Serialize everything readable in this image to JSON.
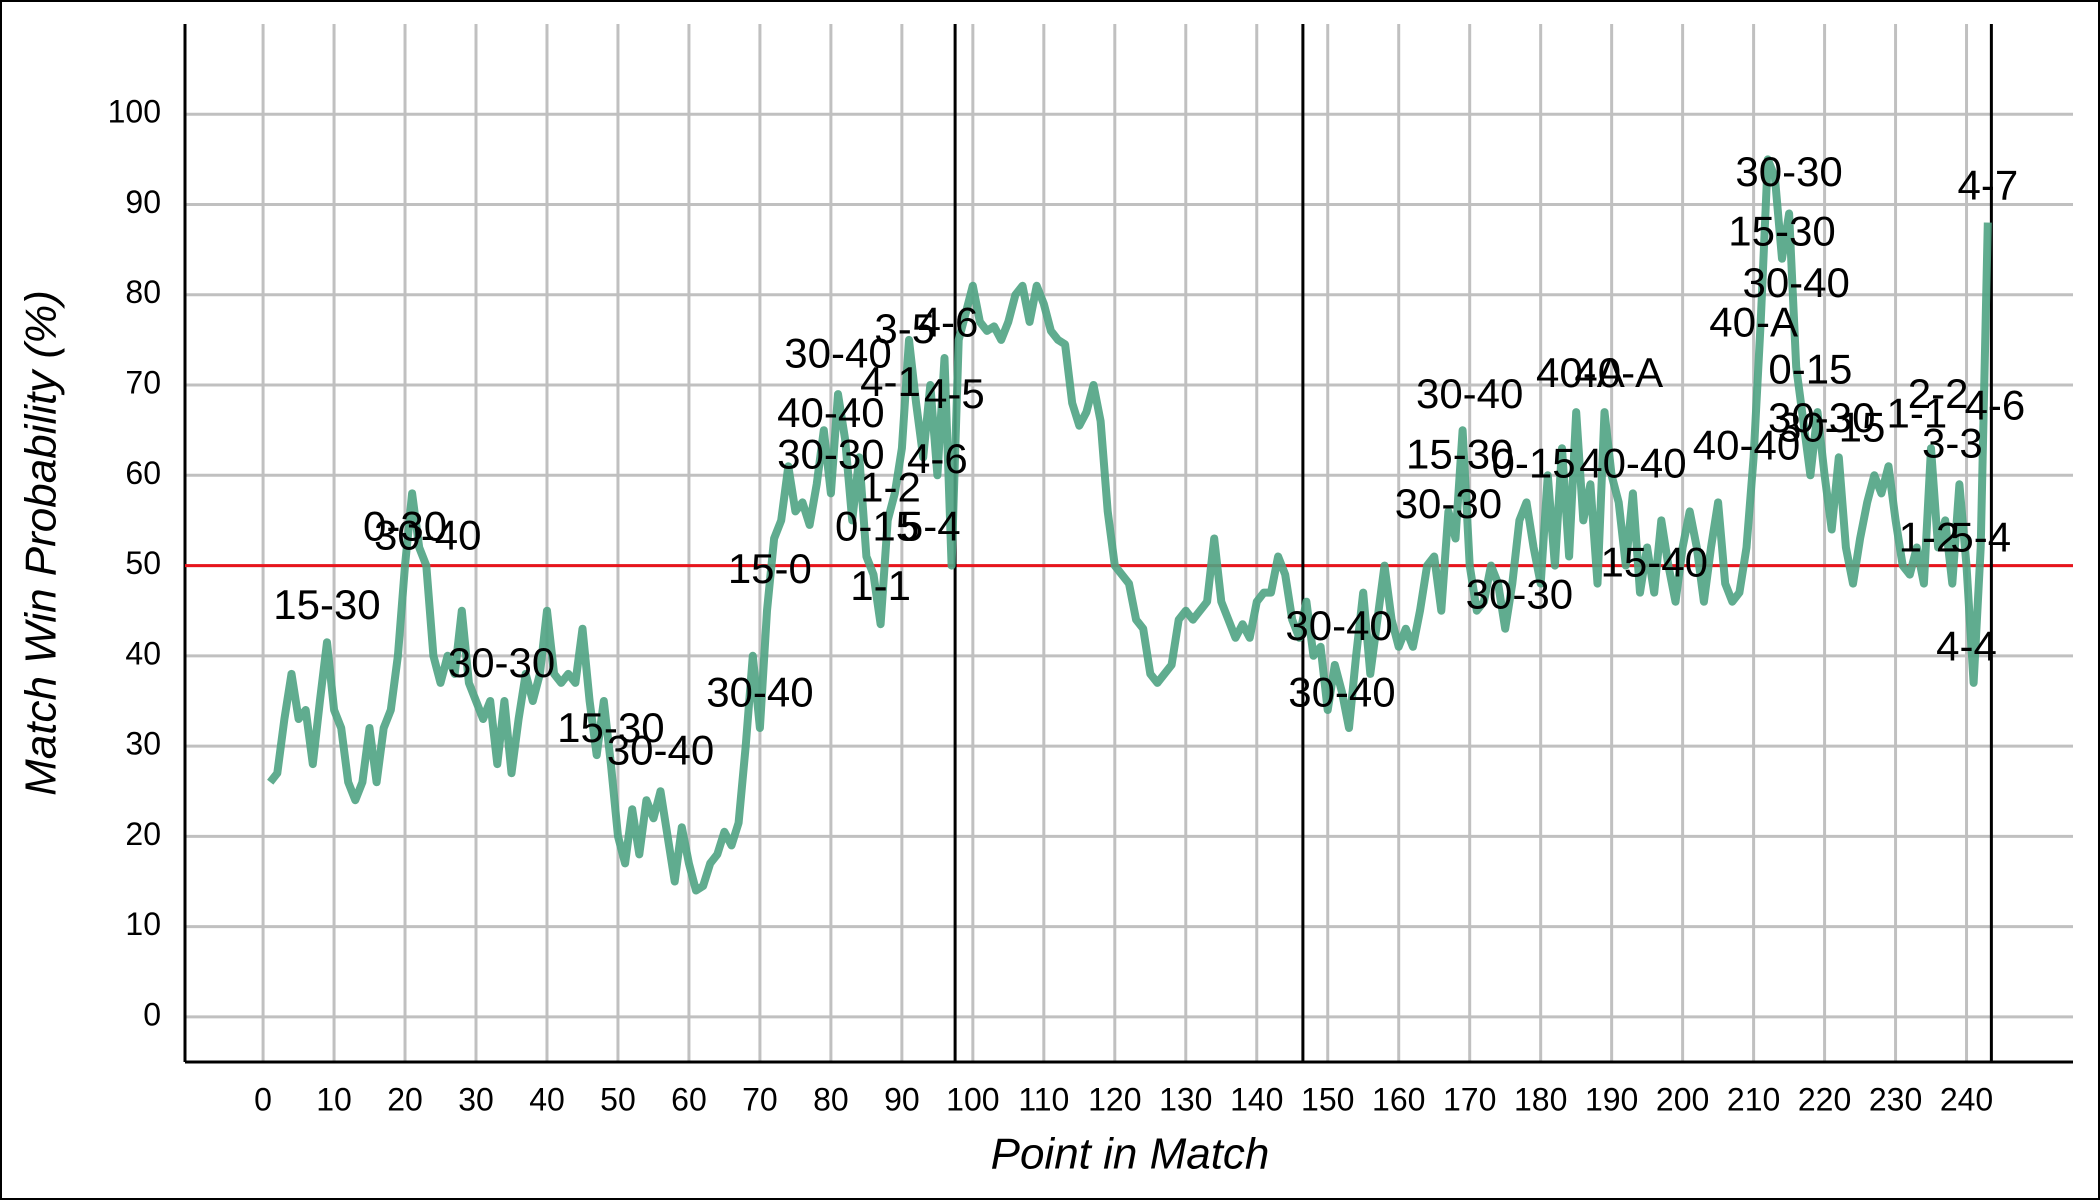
{
  "chart_data": {
    "type": "line",
    "x_label": "Point in Match",
    "y_label": "Match Win Probability (%)",
    "xlim": [
      -11,
      255
    ],
    "ylim": [
      -5,
      110
    ],
    "xticks": [
      0,
      10,
      20,
      30,
      40,
      50,
      60,
      70,
      80,
      90,
      100,
      110,
      120,
      130,
      140,
      150,
      160,
      170,
      180,
      190,
      200,
      210,
      220,
      230,
      240
    ],
    "yticks": [
      0,
      10,
      20,
      30,
      40,
      50,
      60,
      70,
      80,
      90,
      100
    ],
    "grid": true,
    "reference_line": {
      "y": 50,
      "color": "#e8141c"
    },
    "vlines": [
      97.5,
      146.5,
      243.5
    ],
    "series": [
      {
        "color": "#4fa383",
        "x": [
          1,
          2,
          3,
          4,
          5,
          6,
          7,
          8,
          9,
          10,
          11,
          12,
          13,
          14,
          15,
          16,
          17,
          18,
          19,
          20,
          21,
          22,
          23,
          24,
          25,
          26,
          27,
          28,
          29,
          30,
          31,
          32,
          33,
          34,
          35,
          36,
          37,
          38,
          39,
          40,
          41,
          42,
          43,
          44,
          45,
          46,
          47,
          48,
          49,
          50,
          51,
          52,
          53,
          54,
          55,
          56,
          57,
          58,
          59,
          60,
          61,
          62,
          63,
          64,
          65,
          66,
          67,
          68,
          69,
          70,
          71,
          72,
          73,
          74,
          75,
          76,
          77,
          78,
          79,
          80,
          81,
          82,
          83,
          84,
          85,
          86,
          87,
          88,
          89,
          90,
          91,
          92,
          93,
          94,
          95,
          96,
          97,
          98,
          99,
          100,
          101,
          102,
          103,
          104,
          105,
          106,
          107,
          108,
          109,
          110,
          111,
          112,
          113,
          114,
          115,
          116,
          117,
          118,
          119,
          120,
          121,
          122,
          123,
          124,
          125,
          126,
          127,
          128,
          129,
          130,
          131,
          132,
          133,
          134,
          135,
          136,
          137,
          138,
          139,
          140,
          141,
          142,
          143,
          144,
          145,
          146,
          147,
          148,
          149,
          150,
          151,
          152,
          153,
          154,
          155,
          156,
          157,
          158,
          159,
          160,
          161,
          162,
          163,
          164,
          165,
          166,
          167,
          168,
          169,
          170,
          171,
          172,
          173,
          174,
          175,
          176,
          177,
          178,
          179,
          180,
          181,
          182,
          183,
          184,
          185,
          186,
          187,
          188,
          189,
          190,
          191,
          192,
          193,
          194,
          195,
          196,
          197,
          198,
          199,
          200,
          201,
          202,
          203,
          204,
          205,
          206,
          207,
          208,
          209,
          210,
          211,
          212,
          213,
          214,
          215,
          216,
          217,
          218,
          219,
          220,
          221,
          222,
          223,
          224,
          225,
          226,
          227,
          228,
          229,
          230,
          231,
          232,
          233,
          234,
          235,
          236,
          237,
          238,
          239,
          240,
          241,
          242,
          243
        ],
        "values": [
          26,
          27,
          33,
          38,
          33,
          34,
          28,
          35,
          41.5,
          34,
          32,
          26,
          24,
          26,
          32,
          26,
          32,
          34,
          40,
          50,
          58,
          52,
          50,
          40,
          37,
          40,
          38,
          45,
          37,
          35,
          33,
          35,
          28,
          35,
          27,
          33,
          38,
          35,
          38,
          45,
          38,
          37,
          38,
          37,
          43,
          35,
          29,
          35,
          28,
          20,
          17,
          23,
          18,
          24,
          22,
          25,
          20,
          15,
          21,
          17,
          14,
          14.5,
          17,
          18,
          20.5,
          19,
          21.5,
          30,
          40,
          32,
          45,
          53,
          55,
          61,
          56,
          57,
          54.5,
          59,
          65,
          58,
          69,
          64,
          55,
          62,
          51,
          49,
          43.5,
          55,
          58,
          63,
          75,
          68,
          62,
          70,
          60,
          73,
          50,
          75,
          78,
          81,
          77,
          76,
          76.5,
          75,
          77,
          80,
          81,
          77,
          81,
          79,
          76,
          75,
          74.5,
          68,
          65.5,
          67,
          70,
          66,
          56,
          50,
          49,
          48,
          44,
          43,
          38,
          37,
          38,
          39,
          44,
          45,
          44,
          45,
          46,
          53,
          46,
          44,
          42,
          43.5,
          42,
          46,
          47,
          47,
          51,
          49,
          44,
          42,
          46,
          40,
          41,
          34,
          39,
          36,
          32,
          40,
          47,
          38,
          44,
          50,
          44,
          41,
          43,
          41,
          45,
          50,
          51,
          45,
          56,
          53,
          65,
          50,
          45,
          46,
          50,
          48,
          43,
          48,
          55,
          57,
          52,
          48,
          60,
          50,
          63,
          51,
          67,
          55,
          59,
          48,
          67,
          60,
          57,
          50,
          58,
          47,
          52,
          47,
          55,
          50,
          46,
          52,
          56,
          52,
          46,
          52,
          57,
          48,
          46,
          47,
          52,
          62,
          77,
          95,
          93,
          84,
          89,
          72,
          66,
          60,
          67,
          60,
          54,
          62,
          52,
          48,
          53,
          57,
          60,
          58,
          61,
          55,
          50,
          49,
          52,
          48,
          63,
          52,
          55,
          48,
          59,
          50,
          37,
          52,
          88
        ]
      }
    ],
    "annotations": [
      {
        "text": "15-30",
        "x": 9,
        "y": 45.3
      },
      {
        "text": "0-30",
        "x": 20,
        "y": 54
      },
      {
        "text": "30-40",
        "x": 23.2,
        "y": 53
      },
      {
        "text": "30-30",
        "x": 33.6,
        "y": 38.9
      },
      {
        "text": "15-30",
        "x": 49,
        "y": 31.7
      },
      {
        "text": "30-40",
        "x": 56,
        "y": 29.2
      },
      {
        "text": "30-40",
        "x": 70,
        "y": 35.6
      },
      {
        "text": "15-0",
        "x": 71.4,
        "y": 49.3
      },
      {
        "text": "30-40",
        "x": 81,
        "y": 73.2
      },
      {
        "text": "40-40",
        "x": 80,
        "y": 66.6
      },
      {
        "text": "30-30",
        "x": 80,
        "y": 62
      },
      {
        "text": "1-2",
        "x": 88.4,
        "y": 58.3
      },
      {
        "text": "0-15",
        "x": 86.5,
        "y": 54
      },
      {
        "text": "5-4",
        "x": 94,
        "y": 54
      },
      {
        "text": "1-1",
        "x": 87,
        "y": 47.4
      },
      {
        "text": "4-6",
        "x": 95,
        "y": 61.5
      },
      {
        "text": "3-5",
        "x": 90.4,
        "y": 75.9
      },
      {
        "text": "4-6",
        "x": 96.5,
        "y": 76.6
      },
      {
        "text": "4-1",
        "x": 88.4,
        "y": 70
      },
      {
        "text": "4-5",
        "x": 97.4,
        "y": 68.7
      },
      {
        "text": "30-40",
        "x": 151.6,
        "y": 43
      },
      {
        "text": "30-40",
        "x": 152,
        "y": 35.6
      },
      {
        "text": "30-40",
        "x": 170,
        "y": 68.7
      },
      {
        "text": "15-30",
        "x": 168.6,
        "y": 62
      },
      {
        "text": "30-30",
        "x": 167,
        "y": 56.5
      },
      {
        "text": "30-30",
        "x": 177,
        "y": 46.5
      },
      {
        "text": "0-15",
        "x": 179,
        "y": 61
      },
      {
        "text": "40-A",
        "x": 185.6,
        "y": 71
      },
      {
        "text": "40-A",
        "x": 191,
        "y": 71
      },
      {
        "text": "40-40",
        "x": 193,
        "y": 61
      },
      {
        "text": "15-40",
        "x": 196,
        "y": 50
      },
      {
        "text": "40-40",
        "x": 209,
        "y": 63
      },
      {
        "text": "30-30",
        "x": 215,
        "y": 93.3
      },
      {
        "text": "15-30",
        "x": 214,
        "y": 86.7
      },
      {
        "text": "30-40",
        "x": 216,
        "y": 81
      },
      {
        "text": "40-A",
        "x": 210,
        "y": 76.6
      },
      {
        "text": "0-15",
        "x": 218,
        "y": 71.4
      },
      {
        "text": "30-30",
        "x": 219.6,
        "y": 66
      },
      {
        "text": "30-15",
        "x": 221,
        "y": 65
      },
      {
        "text": "1-1",
        "x": 233,
        "y": 66.5
      },
      {
        "text": "2-2",
        "x": 236,
        "y": 68.7
      },
      {
        "text": "4-6",
        "x": 244,
        "y": 67.4
      },
      {
        "text": "3-3",
        "x": 238,
        "y": 63.2
      },
      {
        "text": "1-2",
        "x": 234.7,
        "y": 52.8
      },
      {
        "text": "5-4",
        "x": 242,
        "y": 52.8
      },
      {
        "text": "4-4",
        "x": 240,
        "y": 40.7
      },
      {
        "text": "4-7",
        "x": 243,
        "y": 91.8
      }
    ]
  }
}
